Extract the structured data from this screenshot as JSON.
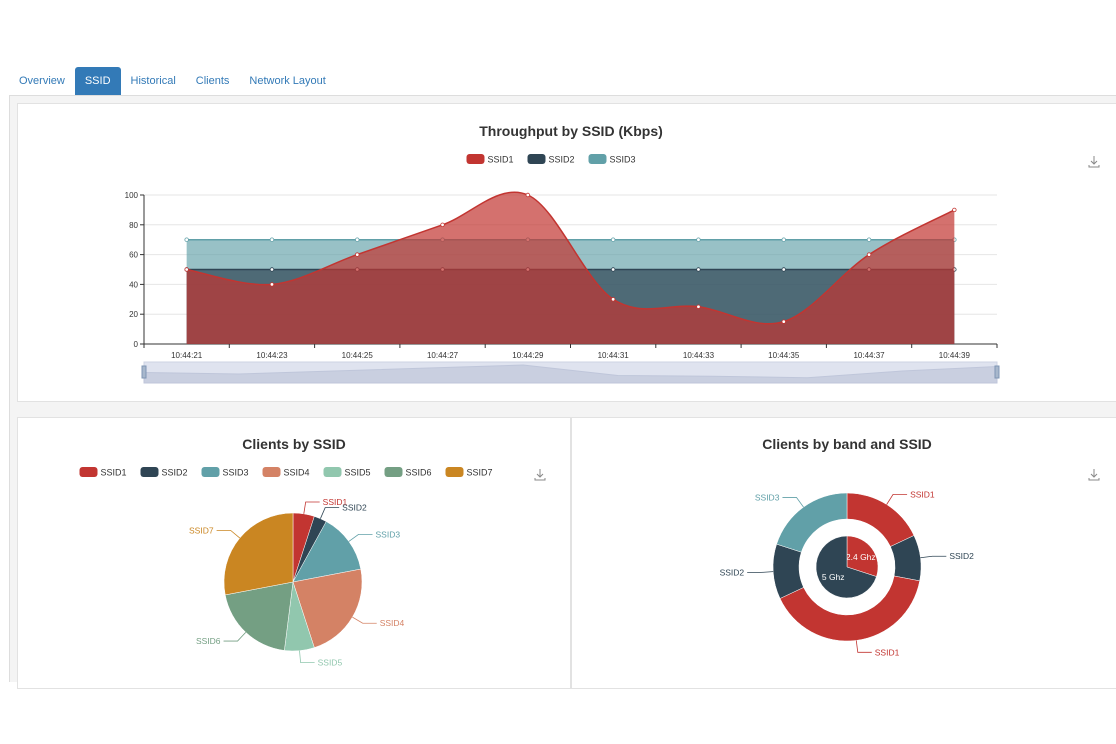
{
  "tabs": [
    {
      "label": "Overview"
    },
    {
      "label": "SSID",
      "active": true
    },
    {
      "label": "Historical"
    },
    {
      "label": "Clients"
    },
    {
      "label": "Network Layout"
    }
  ],
  "colors": {
    "SSID1": "#c23531",
    "SSID2": "#2f4554",
    "SSID3": "#61a0a8",
    "SSID4": "#d48265",
    "SSID5": "#91c7ae",
    "SSID6": "#749f83",
    "SSID7": "#ca8622",
    "tab_active": "#337ab7"
  },
  "chart_data": [
    {
      "type": "area",
      "title": "Throughput by SSID (Kbps)",
      "legend_position": "top-center",
      "grid": true,
      "ylim": [
        0,
        100
      ],
      "yticks": [
        0,
        20,
        40,
        60,
        80,
        100
      ],
      "categories": [
        "10:44:21",
        "10:44:23",
        "10:44:25",
        "10:44:27",
        "10:44:29",
        "10:44:31",
        "10:44:33",
        "10:44:35",
        "10:44:37",
        "10:44:39"
      ],
      "series": [
        {
          "name": "SSID1",
          "values": [
            50,
            40,
            60,
            80,
            100,
            30,
            25,
            15,
            60,
            90
          ],
          "smooth": true
        },
        {
          "name": "SSID2",
          "values": [
            50,
            50,
            50,
            50,
            50,
            50,
            50,
            50,
            50,
            50
          ]
        },
        {
          "name": "SSID3",
          "values": [
            70,
            70,
            70,
            70,
            70,
            70,
            70,
            70,
            70,
            70
          ]
        }
      ],
      "data_zoom": true,
      "download_icon": "download-icon"
    },
    {
      "type": "pie",
      "title": "Clients by SSID",
      "legend_position": "top-center",
      "categories": [
        "SSID1",
        "SSID2",
        "SSID3",
        "SSID4",
        "SSID5",
        "SSID6",
        "SSID7"
      ],
      "values": [
        5,
        3,
        14,
        23,
        7,
        20,
        28
      ],
      "download_icon": "download-icon"
    },
    {
      "type": "pie",
      "title": "Clients by band and SSID",
      "inner": {
        "categories": [
          "2.4 Ghz",
          "5 Ghz"
        ],
        "values": [
          30,
          70
        ]
      },
      "outer": {
        "categories": [
          "SSID1",
          "SSID2",
          "SSID1",
          "SSID2",
          "SSID3"
        ],
        "values": [
          18,
          10,
          40,
          12,
          20
        ]
      },
      "download_icon": "download-icon"
    }
  ]
}
